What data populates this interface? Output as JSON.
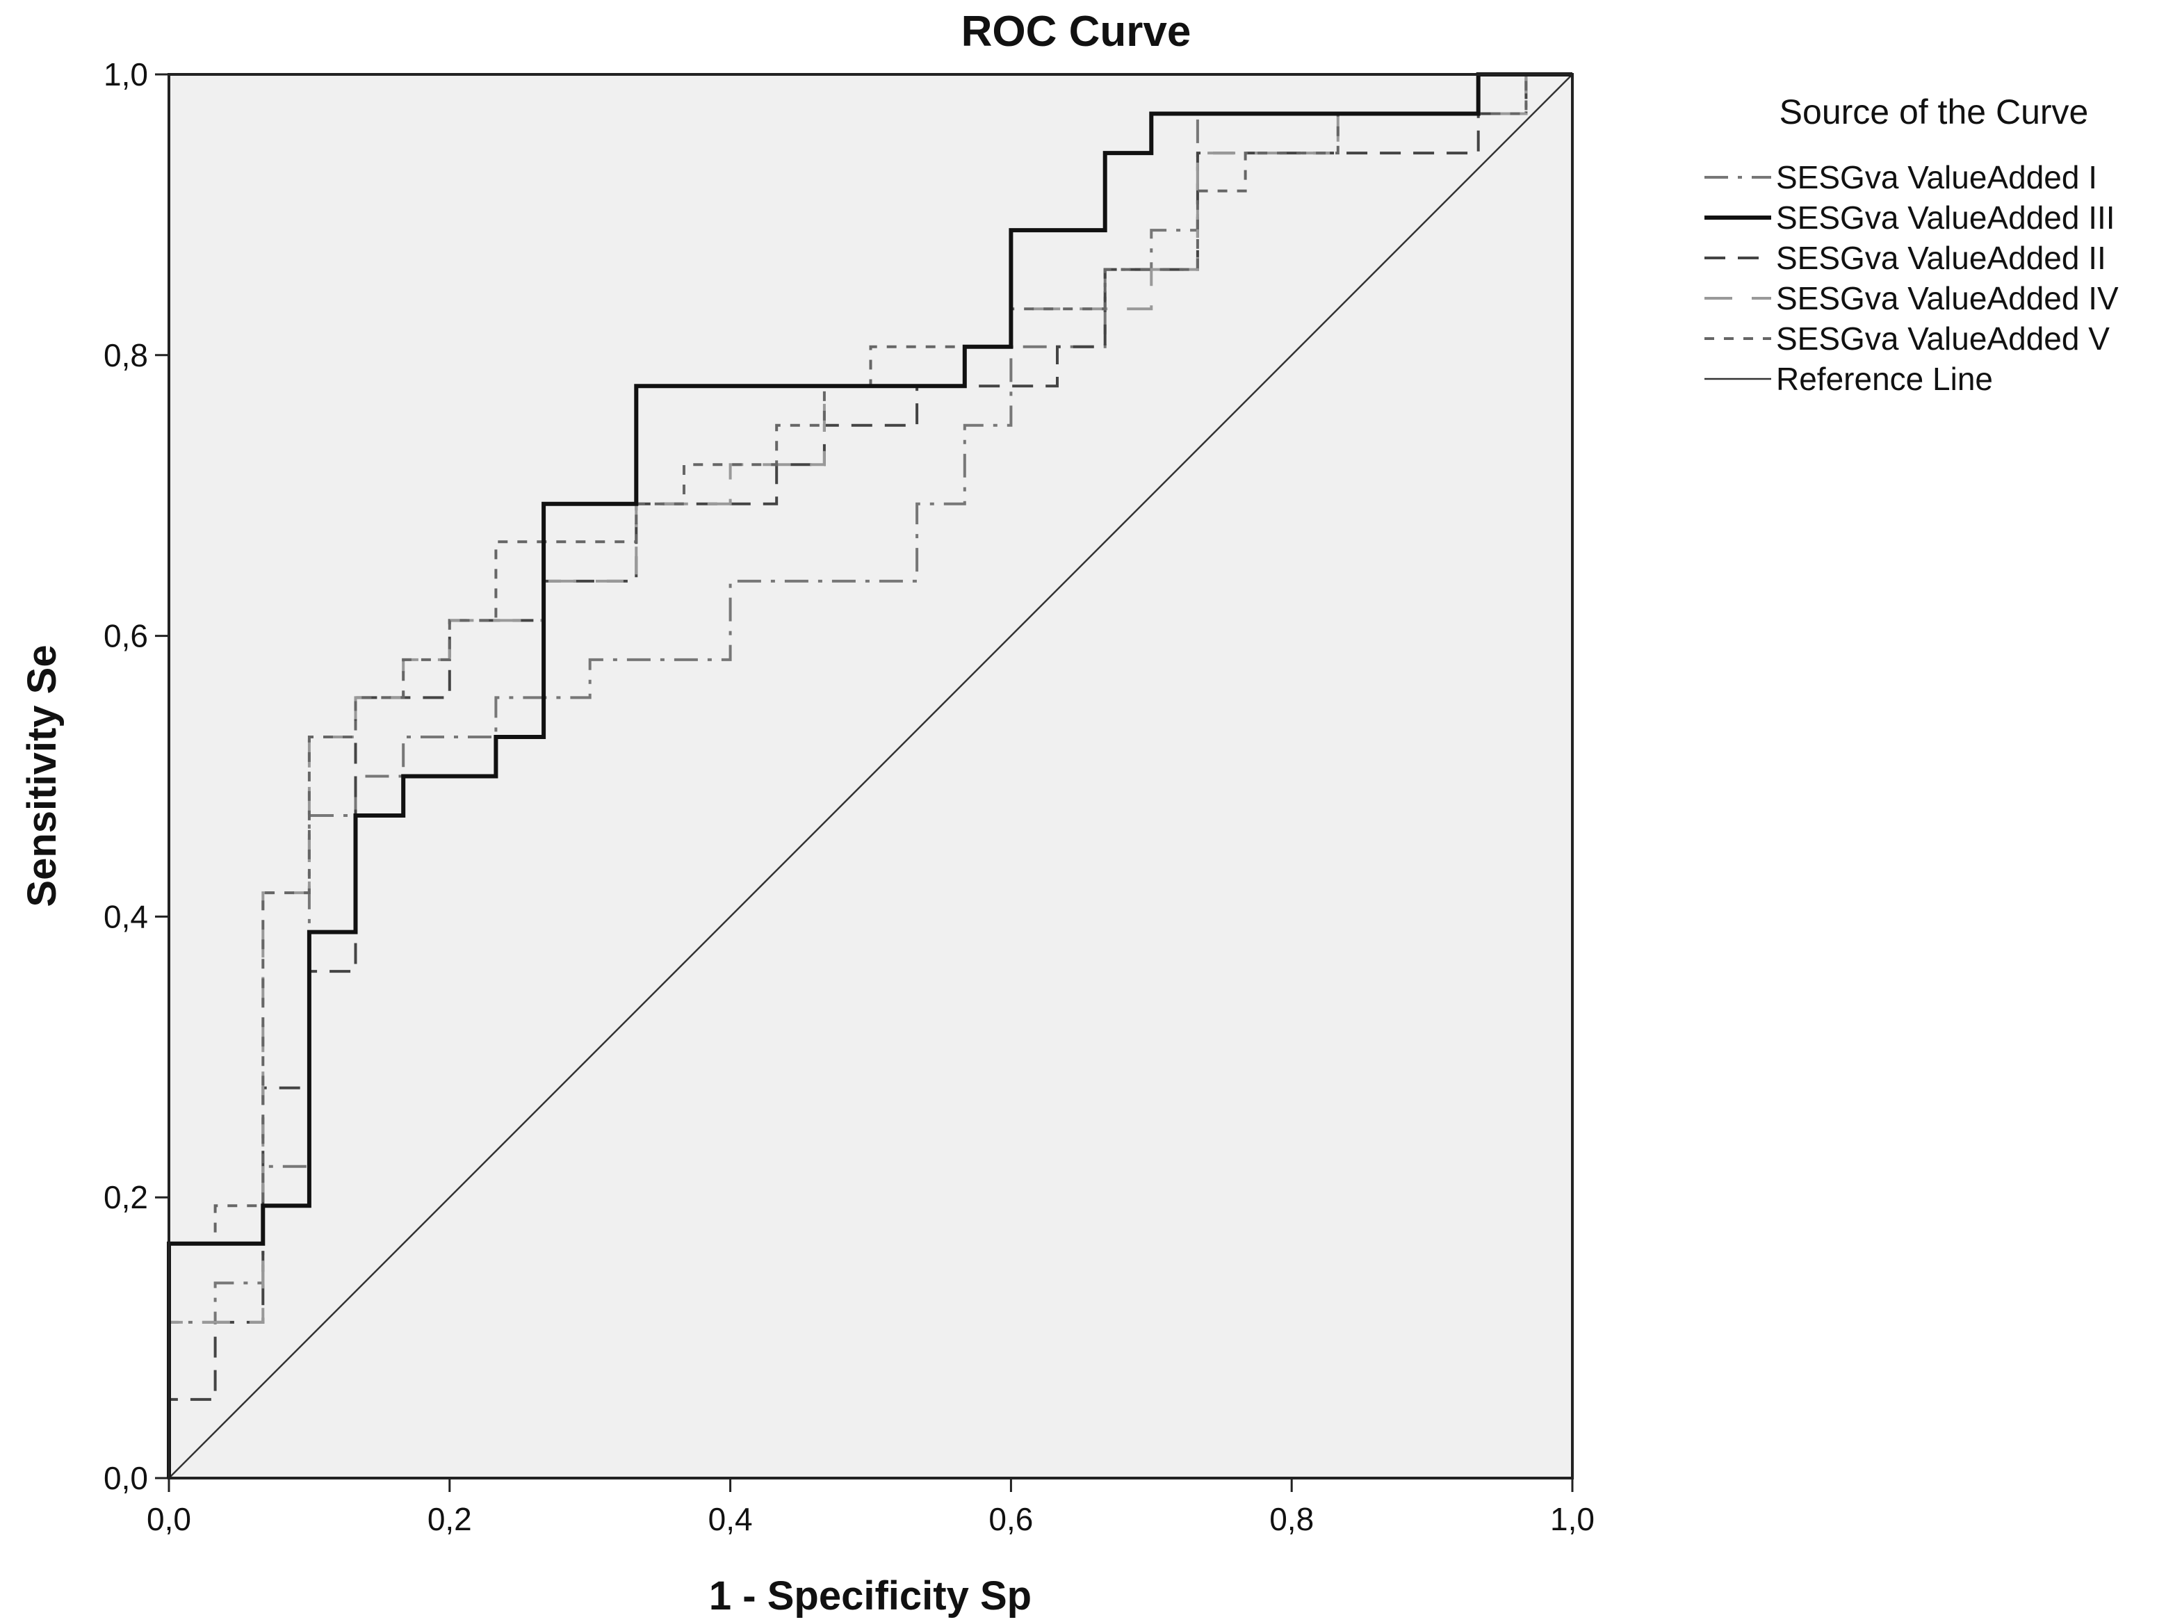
{
  "chart_data": {
    "type": "line",
    "title": "ROC Curve",
    "xlabel": "1 - Specificity Sp",
    "ylabel": "Sensitivity Se",
    "xlim": [
      0,
      1
    ],
    "ylim": [
      0,
      1
    ],
    "x_ticks": [
      "0,0",
      "0,2",
      "0,4",
      "0,6",
      "0,8",
      "1,0"
    ],
    "y_ticks": [
      "0,0",
      "0,2",
      "0,4",
      "0,6",
      "0,8",
      "1,0"
    ],
    "plot_background": "#f0f0f0",
    "grid": false,
    "legend": {
      "title": "Source of the Curve",
      "position": "right"
    },
    "series": [
      {
        "name": "SESGva ValueAdded I",
        "color": "#777777",
        "dash": "dash-dot",
        "points": [
          [
            0,
            0
          ],
          [
            0,
            0.111
          ],
          [
            0.033,
            0.111
          ],
          [
            0.033,
            0.139
          ],
          [
            0.067,
            0.139
          ],
          [
            0.067,
            0.222
          ],
          [
            0.1,
            0.222
          ],
          [
            0.1,
            0.472
          ],
          [
            0.133,
            0.472
          ],
          [
            0.133,
            0.5
          ],
          [
            0.167,
            0.5
          ],
          [
            0.167,
            0.528
          ],
          [
            0.233,
            0.528
          ],
          [
            0.233,
            0.556
          ],
          [
            0.3,
            0.556
          ],
          [
            0.3,
            0.583
          ],
          [
            0.4,
            0.583
          ],
          [
            0.4,
            0.639
          ],
          [
            0.533,
            0.639
          ],
          [
            0.533,
            0.694
          ],
          [
            0.567,
            0.694
          ],
          [
            0.567,
            0.75
          ],
          [
            0.6,
            0.75
          ],
          [
            0.6,
            0.806
          ],
          [
            0.667,
            0.806
          ],
          [
            0.667,
            0.861
          ],
          [
            0.7,
            0.861
          ],
          [
            0.7,
            0.889
          ],
          [
            0.733,
            0.889
          ],
          [
            0.733,
            0.972
          ],
          [
            0.967,
            0.972
          ],
          [
            0.967,
            1
          ],
          [
            1,
            1
          ]
        ]
      },
      {
        "name": "SESGva ValueAdded III",
        "color": "#111111",
        "dash": "solid",
        "points": [
          [
            0,
            0
          ],
          [
            0,
            0.167
          ],
          [
            0.067,
            0.167
          ],
          [
            0.067,
            0.194
          ],
          [
            0.1,
            0.194
          ],
          [
            0.1,
            0.389
          ],
          [
            0.133,
            0.389
          ],
          [
            0.133,
            0.472
          ],
          [
            0.167,
            0.472
          ],
          [
            0.167,
            0.5
          ],
          [
            0.233,
            0.5
          ],
          [
            0.233,
            0.528
          ],
          [
            0.267,
            0.528
          ],
          [
            0.267,
            0.694
          ],
          [
            0.333,
            0.694
          ],
          [
            0.333,
            0.778
          ],
          [
            0.567,
            0.778
          ],
          [
            0.567,
            0.806
          ],
          [
            0.6,
            0.806
          ],
          [
            0.6,
            0.889
          ],
          [
            0.667,
            0.889
          ],
          [
            0.667,
            0.944
          ],
          [
            0.7,
            0.944
          ],
          [
            0.7,
            0.972
          ],
          [
            0.933,
            0.972
          ],
          [
            0.933,
            1
          ],
          [
            1,
            1
          ]
        ]
      },
      {
        "name": "SESGva ValueAdded II",
        "color": "#444444",
        "dash": "long-dash",
        "points": [
          [
            0,
            0
          ],
          [
            0,
            0.056
          ],
          [
            0.033,
            0.056
          ],
          [
            0.033,
            0.111
          ],
          [
            0.067,
            0.111
          ],
          [
            0.067,
            0.278
          ],
          [
            0.1,
            0.278
          ],
          [
            0.1,
            0.361
          ],
          [
            0.133,
            0.361
          ],
          [
            0.133,
            0.556
          ],
          [
            0.2,
            0.556
          ],
          [
            0.2,
            0.611
          ],
          [
            0.267,
            0.611
          ],
          [
            0.267,
            0.639
          ],
          [
            0.333,
            0.639
          ],
          [
            0.333,
            0.694
          ],
          [
            0.433,
            0.694
          ],
          [
            0.433,
            0.722
          ],
          [
            0.467,
            0.722
          ],
          [
            0.467,
            0.75
          ],
          [
            0.533,
            0.75
          ],
          [
            0.533,
            0.778
          ],
          [
            0.633,
            0.778
          ],
          [
            0.633,
            0.806
          ],
          [
            0.667,
            0.806
          ],
          [
            0.667,
            0.861
          ],
          [
            0.733,
            0.861
          ],
          [
            0.733,
            0.944
          ],
          [
            0.933,
            0.944
          ],
          [
            0.933,
            0.972
          ],
          [
            0.967,
            0.972
          ],
          [
            0.967,
            1
          ],
          [
            1,
            1
          ]
        ]
      },
      {
        "name": "SESGva ValueAdded IV",
        "color": "#999999",
        "dash": "long-dash-gap",
        "points": [
          [
            0,
            0
          ],
          [
            0,
            0.111
          ],
          [
            0.067,
            0.111
          ],
          [
            0.067,
            0.417
          ],
          [
            0.1,
            0.417
          ],
          [
            0.1,
            0.528
          ],
          [
            0.133,
            0.528
          ],
          [
            0.133,
            0.556
          ],
          [
            0.167,
            0.556
          ],
          [
            0.167,
            0.583
          ],
          [
            0.2,
            0.583
          ],
          [
            0.2,
            0.611
          ],
          [
            0.267,
            0.611
          ],
          [
            0.267,
            0.639
          ],
          [
            0.333,
            0.639
          ],
          [
            0.333,
            0.694
          ],
          [
            0.4,
            0.694
          ],
          [
            0.4,
            0.722
          ],
          [
            0.467,
            0.722
          ],
          [
            0.467,
            0.778
          ],
          [
            0.567,
            0.778
          ],
          [
            0.567,
            0.806
          ],
          [
            0.6,
            0.806
          ],
          [
            0.6,
            0.833
          ],
          [
            0.7,
            0.833
          ],
          [
            0.7,
            0.861
          ],
          [
            0.733,
            0.861
          ],
          [
            0.733,
            0.944
          ],
          [
            0.833,
            0.944
          ],
          [
            0.833,
            0.972
          ],
          [
            0.967,
            0.972
          ],
          [
            0.967,
            1
          ],
          [
            1,
            1
          ]
        ]
      },
      {
        "name": "SESGva ValueAdded V",
        "color": "#666666",
        "dash": "short-dash",
        "points": [
          [
            0,
            0
          ],
          [
            0,
            0.167
          ],
          [
            0.033,
            0.167
          ],
          [
            0.033,
            0.194
          ],
          [
            0.067,
            0.194
          ],
          [
            0.067,
            0.417
          ],
          [
            0.1,
            0.417
          ],
          [
            0.1,
            0.528
          ],
          [
            0.133,
            0.528
          ],
          [
            0.133,
            0.556
          ],
          [
            0.167,
            0.556
          ],
          [
            0.167,
            0.583
          ],
          [
            0.2,
            0.583
          ],
          [
            0.2,
            0.611
          ],
          [
            0.233,
            0.611
          ],
          [
            0.233,
            0.667
          ],
          [
            0.333,
            0.667
          ],
          [
            0.333,
            0.694
          ],
          [
            0.367,
            0.694
          ],
          [
            0.367,
            0.722
          ],
          [
            0.433,
            0.722
          ],
          [
            0.433,
            0.75
          ],
          [
            0.467,
            0.75
          ],
          [
            0.467,
            0.778
          ],
          [
            0.5,
            0.778
          ],
          [
            0.5,
            0.806
          ],
          [
            0.6,
            0.806
          ],
          [
            0.6,
            0.833
          ],
          [
            0.667,
            0.833
          ],
          [
            0.667,
            0.861
          ],
          [
            0.733,
            0.861
          ],
          [
            0.733,
            0.917
          ],
          [
            0.767,
            0.917
          ],
          [
            0.767,
            0.944
          ],
          [
            0.833,
            0.944
          ],
          [
            0.833,
            0.972
          ],
          [
            0.967,
            0.972
          ],
          [
            0.967,
            1
          ],
          [
            1,
            1
          ]
        ]
      },
      {
        "name": "Reference Line",
        "color": "#333333",
        "dash": "thin",
        "points": [
          [
            0,
            0
          ],
          [
            1,
            1
          ]
        ]
      }
    ]
  }
}
